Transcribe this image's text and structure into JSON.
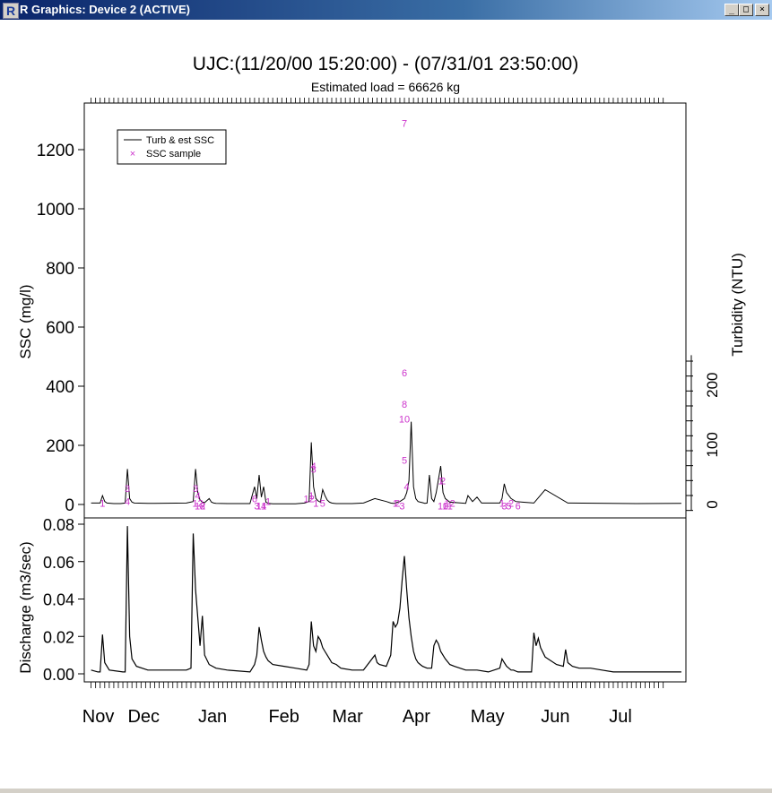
{
  "window": {
    "title": "R Graphics: Device 2 (ACTIVE)",
    "icon": "r-logo-icon",
    "buttons": {
      "minimize": "_",
      "maximize": "□",
      "close": "×"
    }
  },
  "chart_data": {
    "title": "UJC:(11/20/00 15:20:00) - (07/31/01 23:50:00)",
    "subtitle": "Estimated load = 66626 kg",
    "legend": {
      "placement": "top-left",
      "line_label": "Turb & est SSC",
      "point_label": "SSC sample"
    },
    "colors": {
      "line": "#000000",
      "sample": "#cc33cc"
    },
    "x_months": [
      "Nov",
      "Dec",
      "Jan",
      "Feb",
      "Mar",
      "Apr",
      "May",
      "Jun",
      "Jul"
    ],
    "panels": [
      {
        "type": "line",
        "ylabel": "SSC (mg/l)",
        "ylim": [
          0,
          1300
        ],
        "yticks": [
          0,
          200,
          400,
          600,
          800,
          1000,
          1200
        ],
        "right_axis": {
          "label": "Turbidity (NTU)",
          "ticks": [
            0,
            100,
            200
          ],
          "range": [
            -10,
            250
          ]
        },
        "series": [
          {
            "type": "line",
            "x": [
              0,
              4,
              5,
              6,
              7,
              10,
              13,
              15,
              16,
              17,
              18,
              19,
              25,
              28,
              42,
              45,
              46,
              47,
              48,
              49,
              50,
              52,
              53,
              54,
              55,
              60,
              70,
              72,
              73,
              74,
              75,
              76,
              77,
              78,
              79,
              80,
              82,
              85,
              90,
              94,
              96,
              97,
              98,
              99,
              100,
              101,
              102,
              103,
              104,
              105,
              106,
              107,
              108,
              110,
              115,
              120,
              125,
              130,
              132,
              133,
              134,
              135,
              136,
              138,
              139,
              140,
              141,
              142,
              143,
              144,
              145,
              146,
              147,
              148,
              149,
              150,
              151,
              152,
              154,
              155,
              156,
              158,
              165,
              166,
              168,
              170,
              172,
              180,
              181,
              182,
              183,
              184,
              185,
              186,
              187,
              190,
              195,
              200,
              210,
              240,
              260
            ],
            "y": [
              5,
              5,
              30,
              10,
              5,
              3,
              3,
              5,
              120,
              20,
              8,
              5,
              4,
              4,
              5,
              10,
              120,
              40,
              15,
              8,
              6,
              20,
              8,
              5,
              4,
              3,
              3,
              60,
              20,
              100,
              25,
              60,
              8,
              4,
              3,
              2,
              2,
              2,
              2,
              5,
              10,
              210,
              60,
              20,
              12,
              8,
              50,
              30,
              15,
              8,
              5,
              4,
              3,
              3,
              3,
              5,
              20,
              10,
              5,
              4,
              4,
              8,
              10,
              20,
              40,
              80,
              280,
              60,
              20,
              10,
              8,
              6,
              4,
              5,
              100,
              20,
              10,
              40,
              130,
              40,
              20,
              8,
              4,
              30,
              10,
              25,
              5,
              5,
              20,
              70,
              40,
              30,
              20,
              15,
              10,
              8,
              5,
              50,
              5,
              3,
              4
            ]
          }
        ],
        "samples": [
          {
            "x": 5,
            "y": 5,
            "n": "1"
          },
          {
            "x": 16,
            "y": 55,
            "n": "3"
          },
          {
            "x": 16,
            "y": 10,
            "n": "4"
          },
          {
            "x": 46,
            "y": 55,
            "n": "3"
          },
          {
            "x": 47,
            "y": 30,
            "n": "4"
          },
          {
            "x": 47,
            "y": 5,
            "n": "12"
          },
          {
            "x": 48,
            "y": -5,
            "n": "12"
          },
          {
            "x": 49,
            "y": -5,
            "n": "8"
          },
          {
            "x": 72,
            "y": 20,
            "n": "6"
          },
          {
            "x": 73,
            "y": -5,
            "n": "3"
          },
          {
            "x": 75,
            "y": -5,
            "n": "11"
          },
          {
            "x": 76,
            "y": -5,
            "n": "4"
          },
          {
            "x": 78,
            "y": 10,
            "n": "1"
          },
          {
            "x": 96,
            "y": 20,
            "n": "12"
          },
          {
            "x": 97,
            "y": 30,
            "n": "1"
          },
          {
            "x": 98,
            "y": 130,
            "n": "4"
          },
          {
            "x": 98,
            "y": 120,
            "n": "3"
          },
          {
            "x": 99,
            "y": 5,
            "n": "1"
          },
          {
            "x": 102,
            "y": 5,
            "n": "5"
          },
          {
            "x": 134,
            "y": 5,
            "n": "1"
          },
          {
            "x": 135,
            "y": 5,
            "n": "2"
          },
          {
            "x": 137,
            "y": -5,
            "n": "3"
          },
          {
            "x": 138,
            "y": 1290,
            "n": "7"
          },
          {
            "x": 138,
            "y": 445,
            "n": "6"
          },
          {
            "x": 138,
            "y": 340,
            "n": "8"
          },
          {
            "x": 138,
            "y": 290,
            "n": "10"
          },
          {
            "x": 138,
            "y": 150,
            "n": "5"
          },
          {
            "x": 139,
            "y": 60,
            "n": "4"
          },
          {
            "x": 154,
            "y": 80,
            "n": "1"
          },
          {
            "x": 155,
            "y": 80,
            "n": "2"
          },
          {
            "x": 155,
            "y": -5,
            "n": "10"
          },
          {
            "x": 157,
            "y": -5,
            "n": "11"
          },
          {
            "x": 158,
            "y": 5,
            "n": "12"
          },
          {
            "x": 181,
            "y": 5,
            "n": "1"
          },
          {
            "x": 182,
            "y": -5,
            "n": "3"
          },
          {
            "x": 184,
            "y": -5,
            "n": "5"
          },
          {
            "x": 185,
            "y": 5,
            "n": "2"
          },
          {
            "x": 188,
            "y": -5,
            "n": "6"
          }
        ]
      },
      {
        "type": "line",
        "ylabel": "Discharge (m3/sec)",
        "ylim": [
          0,
          0.082
        ],
        "yticks": [
          0.0,
          0.02,
          0.04,
          0.06,
          0.08
        ],
        "ytick_labels": [
          "0.00",
          "0.02",
          "0.04",
          "0.06",
          "0.08"
        ],
        "series": [
          {
            "type": "line",
            "x": [
              0,
              3,
              4,
              5,
              6,
              8,
              14,
              15,
              16,
              17,
              18,
              20,
              25,
              28,
              42,
              44,
              45,
              46,
              47,
              48,
              49,
              50,
              52,
              55,
              60,
              70,
              71,
              72,
              73,
              74,
              75,
              76,
              77,
              78,
              80,
              85,
              90,
              95,
              96,
              97,
              98,
              99,
              100,
              101,
              102,
              103,
              104,
              105,
              106,
              108,
              110,
              115,
              120,
              125,
              126,
              127,
              130,
              132,
              133,
              134,
              135,
              136,
              137,
              138,
              139,
              140,
              141,
              142,
              143,
              144,
              145,
              146,
              148,
              150,
              151,
              152,
              153,
              154,
              156,
              158,
              160,
              165,
              170,
              175,
              180,
              181,
              182,
              183,
              184,
              185,
              186,
              188,
              190,
              194,
              195,
              196,
              197,
              198,
              200,
              205,
              208,
              209,
              210,
              212,
              215,
              220,
              225,
              230,
              240,
              250,
              260
            ],
            "y": [
              0.002,
              0.001,
              0.001,
              0.021,
              0.006,
              0.002,
              0.001,
              0.001,
              0.079,
              0.02,
              0.008,
              0.004,
              0.002,
              0.002,
              0.002,
              0.003,
              0.075,
              0.045,
              0.03,
              0.015,
              0.031,
              0.01,
              0.005,
              0.003,
              0.002,
              0.001,
              0.003,
              0.005,
              0.01,
              0.025,
              0.018,
              0.012,
              0.009,
              0.007,
              0.005,
              0.004,
              0.003,
              0.002,
              0.005,
              0.028,
              0.015,
              0.012,
              0.02,
              0.018,
              0.014,
              0.012,
              0.01,
              0.008,
              0.006,
              0.005,
              0.003,
              0.002,
              0.002,
              0.01,
              0.006,
              0.005,
              0.004,
              0.01,
              0.028,
              0.025,
              0.027,
              0.035,
              0.05,
              0.063,
              0.045,
              0.03,
              0.02,
              0.012,
              0.008,
              0.006,
              0.005,
              0.004,
              0.003,
              0.003,
              0.015,
              0.018,
              0.016,
              0.012,
              0.008,
              0.005,
              0.004,
              0.002,
              0.002,
              0.001,
              0.003,
              0.008,
              0.006,
              0.004,
              0.003,
              0.002,
              0.002,
              0.001,
              0.001,
              0.001,
              0.022,
              0.015,
              0.019,
              0.014,
              0.009,
              0.005,
              0.004,
              0.013,
              0.006,
              0.004,
              0.003,
              0.003,
              0.002,
              0.001,
              0.001,
              0.001,
              0.001
            ]
          }
        ]
      }
    ]
  }
}
